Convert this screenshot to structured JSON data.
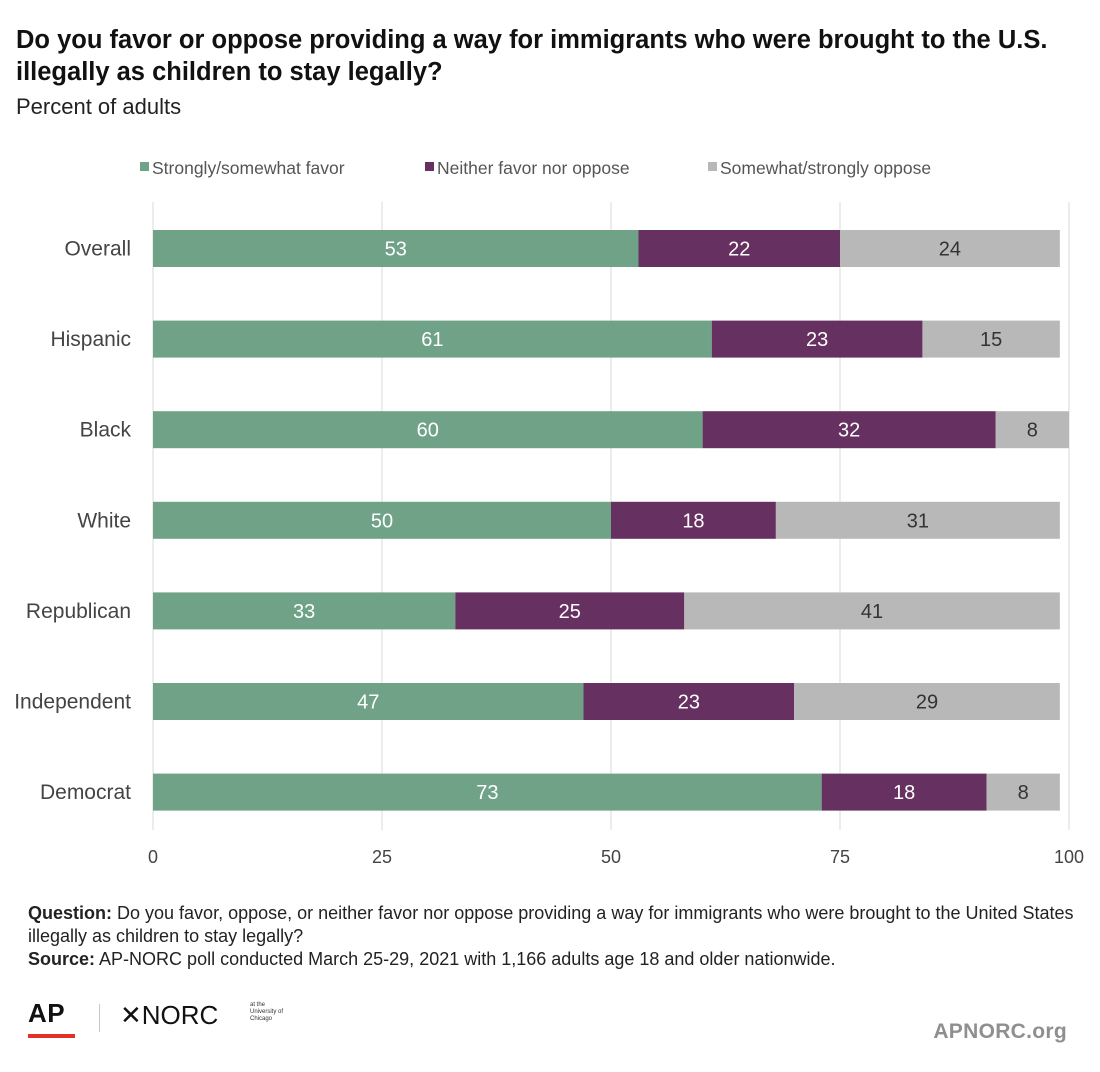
{
  "header": {
    "title": "Do you favor or oppose providing a way for immigrants who were brought to the U.S. illegally as children to stay legally?",
    "subtitle": "Percent of adults"
  },
  "colors": {
    "favor": "#6fa287",
    "neither": "#663060",
    "oppose": "#b8b8b8",
    "grid": "#d9d9d9",
    "ap_red": "#e5302a",
    "site_text": "#8f8f8f"
  },
  "chart_data": {
    "type": "bar",
    "orientation": "horizontal",
    "stacked": true,
    "categories": [
      "Overall",
      "Hispanic",
      "Black",
      "White",
      "Republican",
      "Independent",
      "Democrat"
    ],
    "series": [
      {
        "name": "Strongly/somewhat favor",
        "values": [
          53,
          61,
          60,
          50,
          33,
          47,
          73
        ]
      },
      {
        "name": "Neither favor nor oppose",
        "values": [
          22,
          23,
          32,
          18,
          25,
          23,
          18
        ]
      },
      {
        "name": "Somewhat/strongly oppose",
        "values": [
          24,
          15,
          8,
          31,
          41,
          29,
          8
        ]
      }
    ],
    "xlim": [
      0,
      100
    ],
    "xticks": [
      0,
      25,
      50,
      75,
      100
    ],
    "grid": true,
    "legend": "top",
    "data_labels": true
  },
  "footer": {
    "question_label": "Question:",
    "question_text": "Do you favor, oppose, or neither favor nor oppose providing a way for immigrants who were brought to the United States illegally as children to stay legally?",
    "source_label": "Source:",
    "source_text": "AP-NORC poll conducted March 25-29, 2021 with 1,166 adults age 18 and older nationwide."
  },
  "branding": {
    "ap_logo": "AP",
    "norc_logo": "✕NORC",
    "norc_sub": "at the University of Chicago",
    "site": "APNORC.org"
  }
}
